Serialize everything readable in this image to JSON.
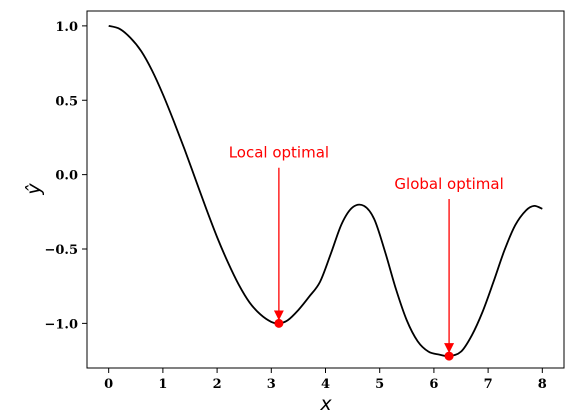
{
  "chart_data": {
    "type": "line",
    "title": "",
    "xlabel": "x",
    "ylabel": "ŷ",
    "xlim": [
      -0.4,
      8.4
    ],
    "ylim": [
      -1.3,
      1.1
    ],
    "xticks": [
      0,
      1,
      2,
      3,
      4,
      5,
      6,
      7,
      8
    ],
    "xtick_labels": [
      "0",
      "1",
      "2",
      "3",
      "4",
      "5",
      "6",
      "7",
      "8"
    ],
    "yticks": [
      1.0,
      0.5,
      0.0,
      -0.5,
      -1.0
    ],
    "ytick_labels": [
      "1.0",
      "0.5",
      "0.0",
      "−0.5",
      "−1.0"
    ],
    "grid": false,
    "line_color": "#000000",
    "annotation_color": "#ff0000",
    "series": [
      {
        "x": [
          0,
          0.2,
          0.4,
          0.6,
          0.8,
          1.0,
          1.2,
          1.4,
          1.6,
          1.8,
          2.0,
          2.2,
          2.4,
          2.6,
          2.8,
          3.0,
          3.14,
          3.3,
          3.5,
          3.7,
          3.9,
          4.1,
          4.3,
          4.5,
          4.71,
          4.9,
          5.1,
          5.3,
          5.5,
          5.7,
          5.9,
          6.1,
          6.28,
          6.5,
          6.7,
          6.9,
          7.1,
          7.3,
          7.5,
          7.7,
          7.85,
          8.0
        ],
        "y": [
          1.0,
          0.98,
          0.92,
          0.83,
          0.7,
          0.54,
          0.36,
          0.17,
          -0.03,
          -0.23,
          -0.42,
          -0.59,
          -0.74,
          -0.86,
          -0.94,
          -0.99,
          -1.0,
          -0.98,
          -0.91,
          -0.82,
          -0.72,
          -0.53,
          -0.33,
          -0.22,
          -0.21,
          -0.3,
          -0.52,
          -0.77,
          -0.98,
          -1.12,
          -1.19,
          -1.21,
          -1.22,
          -1.19,
          -1.08,
          -0.92,
          -0.72,
          -0.51,
          -0.34,
          -0.24,
          -0.21,
          -0.23
        ]
      }
    ],
    "annotations": [
      {
        "text": "Local optimal",
        "point": [
          3.14,
          -1.0
        ],
        "text_pos": [
          3.14,
          0.06
        ]
      },
      {
        "text": "Global optimal",
        "point": [
          6.28,
          -1.22
        ],
        "text_pos": [
          6.28,
          -0.15
        ]
      }
    ]
  }
}
